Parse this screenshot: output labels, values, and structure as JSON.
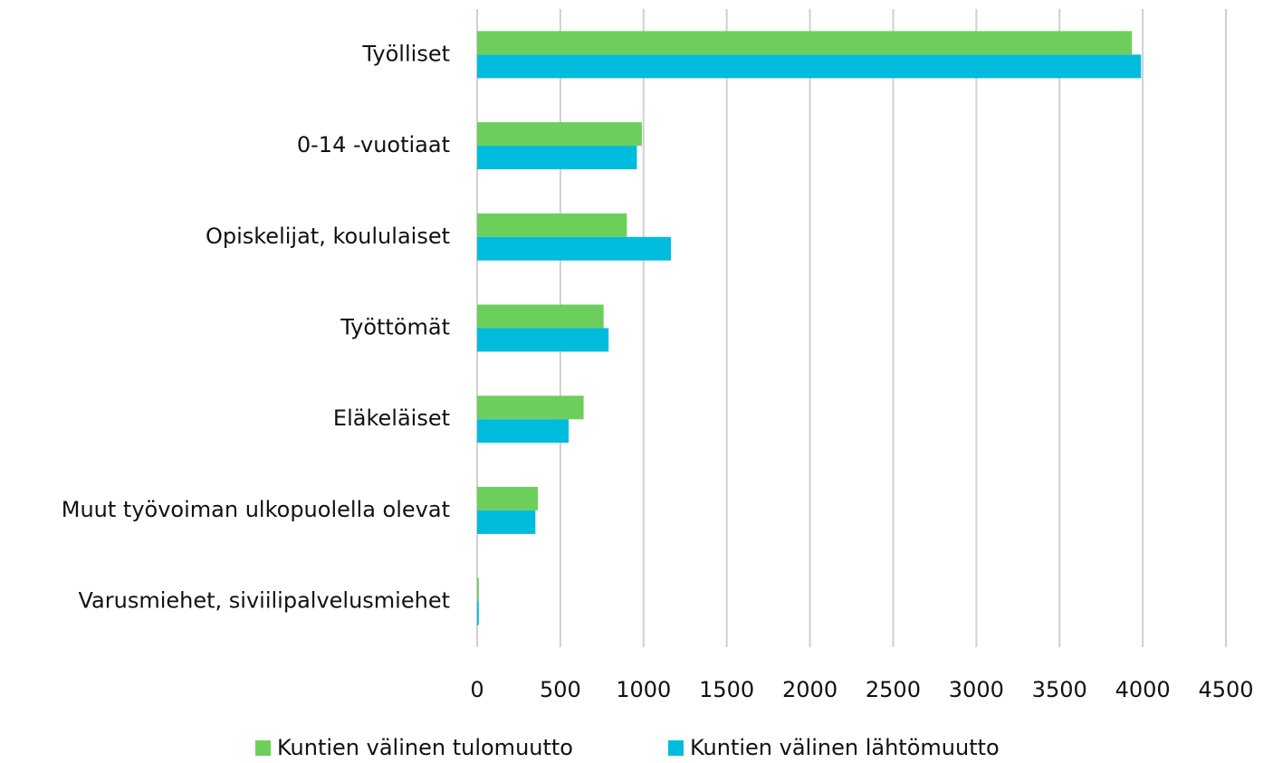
{
  "chart_data": {
    "type": "hbar",
    "categories": [
      "Työlliset",
      "0-14 -vuotiaat",
      "Opiskelijat, koululaiset",
      "Työttömät",
      "Eläkeläiset",
      "Muut työvoiman ulkopuolella olevat",
      "Varusmiehet, siviilipalvelusmiehet"
    ],
    "series": [
      {
        "name": "Kuntien välinen tulomuutto",
        "color": "#6dcf5b",
        "values": [
          3935,
          990,
          900,
          760,
          640,
          365,
          10
        ]
      },
      {
        "name": "Kuntien välinen lähtömuutto",
        "color": "#00bcdc",
        "values": [
          3990,
          960,
          1165,
          790,
          550,
          350,
          10
        ]
      }
    ],
    "xlim": [
      0,
      4500
    ],
    "xticks": [
      0,
      500,
      1000,
      1500,
      2000,
      2500,
      3000,
      3500,
      4000,
      4500
    ],
    "grid": true,
    "legend": "bottom"
  }
}
